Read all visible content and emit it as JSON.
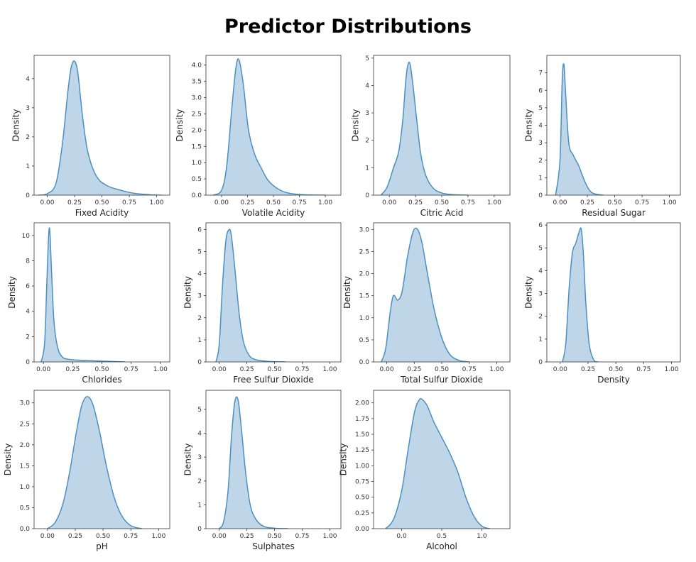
{
  "title": "Predictor Distributions",
  "style": {
    "fill_color": "#bcd4e8",
    "line_color": "#4a90c2",
    "frame_color": "#333333"
  },
  "chart_data": [
    {
      "type": "area",
      "xlabel": "Fixed Acidity",
      "ylabel": "Density",
      "xlim": [
        -0.12,
        1.12
      ],
      "ylim": [
        0,
        4.8
      ],
      "xticks": [
        0.0,
        0.25,
        0.5,
        0.75,
        1.0
      ],
      "xtick_labels": [
        "0.00",
        "0.25",
        "0.50",
        "0.75",
        "1.00"
      ],
      "yticks": [
        0,
        1,
        2,
        3,
        4
      ],
      "ytick_labels": [
        "0",
        "1",
        "2",
        "3",
        "4"
      ],
      "x": [
        -0.08,
        0.0,
        0.08,
        0.14,
        0.19,
        0.22,
        0.25,
        0.28,
        0.32,
        0.37,
        0.45,
        0.55,
        0.68,
        0.8,
        0.95,
        1.05
      ],
      "y": [
        0.0,
        0.05,
        0.4,
        1.8,
        3.6,
        4.4,
        4.6,
        4.2,
        2.8,
        1.5,
        0.65,
        0.32,
        0.16,
        0.06,
        0.01,
        0.0
      ]
    },
    {
      "type": "area",
      "xlabel": "Volatile Acidity",
      "ylabel": "Density",
      "xlim": [
        -0.15,
        1.15
      ],
      "ylim": [
        0,
        4.3
      ],
      "xticks": [
        0.0,
        0.25,
        0.5,
        0.75,
        1.0
      ],
      "xtick_labels": [
        "0.00",
        "0.25",
        "0.50",
        "0.75",
        "1.00"
      ],
      "yticks": [
        0,
        0.5,
        1.0,
        1.5,
        2.0,
        2.5,
        3.0,
        3.5,
        4.0
      ],
      "ytick_labels": [
        "0.0",
        "0.5",
        "1.0",
        "1.5",
        "2.0",
        "2.5",
        "3.0",
        "3.5",
        "4.0"
      ],
      "x": [
        -0.08,
        0.0,
        0.05,
        0.1,
        0.14,
        0.17,
        0.21,
        0.26,
        0.32,
        0.38,
        0.45,
        0.55,
        0.65,
        0.8,
        1.0
      ],
      "y": [
        0.0,
        0.15,
        0.9,
        2.7,
        3.95,
        4.15,
        3.4,
        2.0,
        1.25,
        0.85,
        0.45,
        0.18,
        0.06,
        0.01,
        0.0
      ]
    },
    {
      "type": "area",
      "xlabel": "Citric Acid",
      "ylabel": "Density",
      "xlim": [
        -0.15,
        1.15
      ],
      "ylim": [
        0,
        5.1
      ],
      "xticks": [
        0.0,
        0.25,
        0.5,
        0.75,
        1.0
      ],
      "xtick_labels": [
        "0.00",
        "0.25",
        "0.50",
        "0.75",
        "1.00"
      ],
      "yticks": [
        0,
        1,
        2,
        3,
        4,
        5
      ],
      "ytick_labels": [
        "0",
        "1",
        "2",
        "3",
        "4",
        "5"
      ],
      "x": [
        -0.08,
        -0.02,
        0.04,
        0.09,
        0.13,
        0.16,
        0.19,
        0.22,
        0.26,
        0.3,
        0.35,
        0.42,
        0.5,
        0.6,
        0.75
      ],
      "y": [
        0.0,
        0.3,
        1.0,
        1.6,
        2.8,
        4.3,
        4.85,
        4.2,
        2.8,
        1.5,
        0.7,
        0.25,
        0.08,
        0.02,
        0.0
      ]
    },
    {
      "type": "area",
      "xlabel": "Residual Sugar",
      "ylabel": "Density",
      "xlim": [
        -0.12,
        1.1
      ],
      "ylim": [
        0,
        8.0
      ],
      "xticks": [
        0.0,
        0.25,
        0.5,
        0.75,
        1.0
      ],
      "xtick_labels": [
        "0.00",
        "0.25",
        "0.50",
        "0.75",
        "1.00"
      ],
      "yticks": [
        0,
        1,
        2,
        3,
        4,
        5,
        6,
        7
      ],
      "ytick_labels": [
        "0",
        "1",
        "2",
        "3",
        "4",
        "5",
        "6",
        "7"
      ],
      "x": [
        -0.04,
        0.0,
        0.02,
        0.035,
        0.05,
        0.08,
        0.12,
        0.17,
        0.2,
        0.24,
        0.28,
        0.33,
        0.4
      ],
      "y": [
        0.0,
        2.0,
        6.5,
        7.5,
        6.0,
        3.0,
        2.3,
        1.7,
        1.2,
        0.6,
        0.2,
        0.05,
        0.0
      ]
    },
    {
      "type": "area",
      "xlabel": "Chlorides",
      "ylabel": "Density",
      "xlim": [
        -0.08,
        1.08
      ],
      "ylim": [
        0,
        11.0
      ],
      "xticks": [
        0.0,
        0.25,
        0.5,
        0.75,
        1.0
      ],
      "xtick_labels": [
        "0.00",
        "0.25",
        "0.50",
        "0.75",
        "1.00"
      ],
      "yticks": [
        0,
        2,
        4,
        6,
        8,
        10
      ],
      "ytick_labels": [
        "0",
        "2",
        "4",
        "6",
        "8",
        "10"
      ],
      "x": [
        -0.02,
        0.01,
        0.03,
        0.05,
        0.07,
        0.09,
        0.12,
        0.16,
        0.22,
        0.35,
        0.5,
        0.7
      ],
      "y": [
        0.0,
        1.5,
        6.5,
        10.6,
        7.0,
        3.2,
        1.2,
        0.4,
        0.2,
        0.12,
        0.06,
        0.0
      ]
    },
    {
      "type": "area",
      "xlabel": "Free Sulfur Dioxide",
      "ylabel": "Density",
      "xlim": [
        -0.12,
        1.1
      ],
      "ylim": [
        0,
        6.3
      ],
      "xticks": [
        0.0,
        0.25,
        0.5,
        0.75,
        1.0
      ],
      "xtick_labels": [
        "0.00",
        "0.25",
        "0.50",
        "0.75",
        "1.00"
      ],
      "yticks": [
        0,
        1,
        2,
        3,
        4,
        5,
        6
      ],
      "ytick_labels": [
        "0",
        "1",
        "2",
        "3",
        "4",
        "5",
        "6"
      ],
      "x": [
        -0.03,
        0.0,
        0.03,
        0.06,
        0.09,
        0.11,
        0.14,
        0.18,
        0.22,
        0.27,
        0.33,
        0.45,
        0.6
      ],
      "y": [
        0.0,
        0.8,
        3.5,
        5.5,
        6.0,
        5.7,
        4.3,
        2.2,
        0.9,
        0.3,
        0.1,
        0.02,
        0.0
      ]
    },
    {
      "type": "area",
      "xlabel": "Total Sulfur Dioxide",
      "ylabel": "Density",
      "xlim": [
        -0.12,
        1.12
      ],
      "ylim": [
        0,
        3.15
      ],
      "xticks": [
        0.0,
        0.25,
        0.5,
        0.75,
        1.0
      ],
      "xtick_labels": [
        "0.00",
        "0.25",
        "0.50",
        "0.75",
        "1.00"
      ],
      "yticks": [
        0,
        0.5,
        1.0,
        1.5,
        2.0,
        2.5,
        3.0
      ],
      "ytick_labels": [
        "0.0",
        "0.5",
        "1.0",
        "1.5",
        "2.0",
        "2.5",
        "3.0"
      ],
      "x": [
        -0.05,
        -0.01,
        0.03,
        0.06,
        0.1,
        0.14,
        0.19,
        0.24,
        0.28,
        0.32,
        0.37,
        0.43,
        0.5,
        0.57,
        0.65,
        0.75
      ],
      "y": [
        0.0,
        0.3,
        1.1,
        1.5,
        1.4,
        1.6,
        2.4,
        2.95,
        3.0,
        2.7,
        2.0,
        1.2,
        0.55,
        0.18,
        0.04,
        0.0
      ]
    },
    {
      "type": "area",
      "xlabel": "Density",
      "ylabel": "Density",
      "xlim": [
        -0.12,
        1.08
      ],
      "ylim": [
        0,
        6.1
      ],
      "xticks": [
        0.0,
        0.25,
        0.5,
        0.75,
        1.0
      ],
      "xtick_labels": [
        "0.00",
        "0.25",
        "0.50",
        "0.75",
        "1.00"
      ],
      "yticks": [
        0,
        1,
        2,
        3,
        4,
        5,
        6
      ],
      "ytick_labels": [
        "0",
        "1",
        "2",
        "3",
        "4",
        "5",
        "6"
      ],
      "x": [
        0.02,
        0.05,
        0.08,
        0.11,
        0.14,
        0.17,
        0.19,
        0.21,
        0.23,
        0.26,
        0.3,
        0.34
      ],
      "y": [
        0.0,
        0.8,
        3.2,
        4.8,
        5.2,
        5.7,
        5.8,
        4.6,
        2.6,
        0.8,
        0.1,
        0.0
      ]
    },
    {
      "type": "area",
      "xlabel": "pH",
      "ylabel": "Density",
      "xlim": [
        -0.12,
        1.1
      ],
      "ylim": [
        0,
        3.3
      ],
      "xticks": [
        0.0,
        0.25,
        0.5,
        0.75,
        1.0
      ],
      "xtick_labels": [
        "0.00",
        "0.25",
        "0.50",
        "0.75",
        "1.00"
      ],
      "yticks": [
        0,
        0.5,
        1.0,
        1.5,
        2.0,
        2.5,
        3.0
      ],
      "ytick_labels": [
        "0.0",
        "0.5",
        "1.0",
        "1.5",
        "2.0",
        "2.5",
        "3.0"
      ],
      "x": [
        0.0,
        0.07,
        0.14,
        0.2,
        0.26,
        0.31,
        0.36,
        0.41,
        0.47,
        0.53,
        0.6,
        0.67,
        0.75,
        0.85
      ],
      "y": [
        0.0,
        0.15,
        0.6,
        1.35,
        2.3,
        2.95,
        3.15,
        2.95,
        2.3,
        1.5,
        0.75,
        0.3,
        0.07,
        0.0
      ]
    },
    {
      "type": "area",
      "xlabel": "Sulphates",
      "ylabel": "Density",
      "xlim": [
        -0.12,
        1.1
      ],
      "ylim": [
        0,
        5.8
      ],
      "xticks": [
        0.0,
        0.25,
        0.5,
        0.75,
        1.0
      ],
      "xtick_labels": [
        "0.00",
        "0.25",
        "0.50",
        "0.75",
        "1.00"
      ],
      "yticks": [
        0,
        1,
        2,
        3,
        4,
        5
      ],
      "ytick_labels": [
        "0",
        "1",
        "2",
        "3",
        "4",
        "5"
      ],
      "x": [
        0.0,
        0.04,
        0.08,
        0.11,
        0.14,
        0.17,
        0.2,
        0.24,
        0.28,
        0.33,
        0.4,
        0.5,
        0.62
      ],
      "y": [
        0.0,
        0.3,
        1.6,
        3.8,
        5.3,
        5.4,
        4.2,
        2.3,
        1.0,
        0.4,
        0.1,
        0.02,
        0.0
      ]
    },
    {
      "type": "area",
      "xlabel": "Alcohol",
      "ylabel": "Density",
      "xlim": [
        -0.35,
        1.35
      ],
      "ylim": [
        0,
        2.2
      ],
      "xticks": [
        0.0,
        0.5,
        1.0
      ],
      "xtick_labels": [
        "0.0",
        "0.5",
        "1.0"
      ],
      "yticks": [
        0,
        0.25,
        0.5,
        0.75,
        1.0,
        1.25,
        1.5,
        1.75,
        2.0
      ],
      "ytick_labels": [
        "0.00",
        "0.25",
        "0.50",
        "0.75",
        "1.00",
        "1.25",
        "1.50",
        "1.75",
        "2.00"
      ],
      "x": [
        -0.2,
        -0.1,
        0.0,
        0.08,
        0.16,
        0.22,
        0.26,
        0.32,
        0.4,
        0.5,
        0.6,
        0.7,
        0.8,
        0.9,
        1.0,
        1.1
      ],
      "y": [
        0.0,
        0.15,
        0.6,
        1.25,
        1.85,
        2.05,
        2.05,
        1.95,
        1.7,
        1.45,
        1.2,
        0.9,
        0.5,
        0.2,
        0.04,
        0.0
      ]
    }
  ]
}
